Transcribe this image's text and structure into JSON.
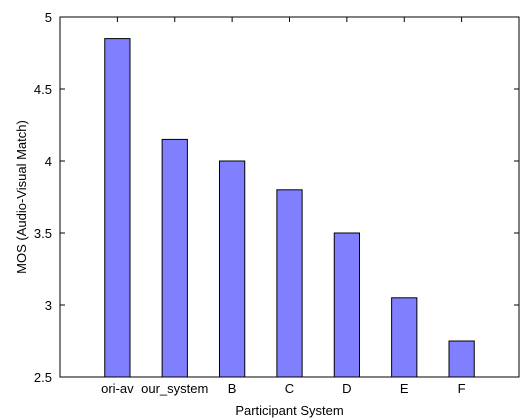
{
  "chart_data": {
    "type": "bar",
    "categories": [
      "ori-av",
      "our_system",
      "B",
      "C",
      "D",
      "E",
      "F"
    ],
    "values": [
      4.85,
      4.15,
      4.0,
      3.8,
      3.5,
      3.05,
      2.75
    ],
    "title": "",
    "xlabel": "Participant System",
    "ylabel": "MOS (Audio-Visual Match)",
    "ylim": [
      2.5,
      5
    ],
    "yticks": [
      2.5,
      3,
      3.5,
      4,
      4.5,
      5
    ],
    "ytick_labels": [
      "2.5",
      "3",
      "3.5",
      "4",
      "4.5",
      "5"
    ],
    "grid": false,
    "bar_color": "#8080ff",
    "edge_color": "#000000"
  }
}
